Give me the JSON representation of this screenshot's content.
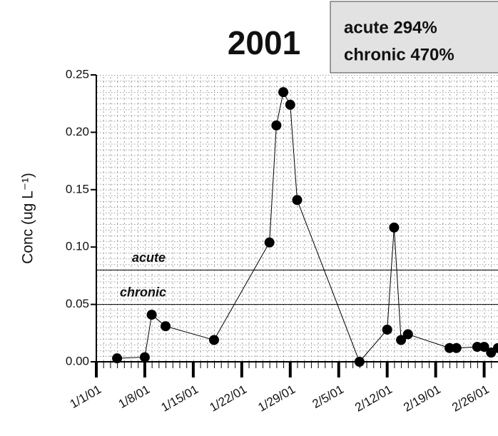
{
  "chart_data": {
    "type": "line",
    "title": "2001",
    "ylabel": "Conc (ug L⁻¹)",
    "annotations": [
      "acute 294%",
      "chronic 470%"
    ],
    "thresholds": [
      {
        "name": "acute",
        "value": 0.08
      },
      {
        "name": "chronic",
        "value": 0.05
      }
    ],
    "x": [
      "2001-01-04",
      "2001-01-08",
      "2001-01-09",
      "2001-01-11",
      "2001-01-18",
      "2001-01-26",
      "2001-01-27",
      "2001-01-28",
      "2001-01-29",
      "2001-01-30",
      "2001-02-08",
      "2001-02-12",
      "2001-02-13",
      "2001-02-14",
      "2001-02-15",
      "2001-02-21",
      "2001-02-22",
      "2001-02-25",
      "2001-02-26",
      "2001-02-27",
      "2001-02-28"
    ],
    "series": [
      {
        "name": "Conc",
        "color": "#000000",
        "values": [
          0.003,
          0.004,
          0.041,
          0.031,
          0.019,
          0.104,
          0.206,
          0.235,
          0.224,
          0.141,
          0.0,
          0.028,
          0.117,
          0.019,
          0.024,
          0.012,
          0.012,
          0.013,
          0.013,
          0.008,
          0.012
        ]
      }
    ],
    "xlim": [
      "2001-01-01",
      "2001-02-28"
    ],
    "xticks": [
      {
        "value": "2001-01-01",
        "label": "1/1/01"
      },
      {
        "value": "2001-01-08",
        "label": "1/8/01"
      },
      {
        "value": "2001-01-15",
        "label": "1/15/01"
      },
      {
        "value": "2001-01-22",
        "label": "1/22/01"
      },
      {
        "value": "2001-01-29",
        "label": "1/29/01"
      },
      {
        "value": "2001-02-05",
        "label": "2/5/01"
      },
      {
        "value": "2001-02-12",
        "label": "2/12/01"
      },
      {
        "value": "2001-02-19",
        "label": "2/19/01"
      },
      {
        "value": "2001-02-26",
        "label": "2/26/01"
      }
    ],
    "ylim": [
      0,
      0.25
    ],
    "yticks": [
      {
        "value": 0,
        "label": "0.00"
      },
      {
        "value": 0.05,
        "label": "0.05"
      },
      {
        "value": 0.1,
        "label": "0.10"
      },
      {
        "value": 0.15,
        "label": "0.15"
      },
      {
        "value": 0.2,
        "label": "0.20"
      },
      {
        "value": 0.25,
        "label": "0.25"
      }
    ],
    "grid": true
  }
}
